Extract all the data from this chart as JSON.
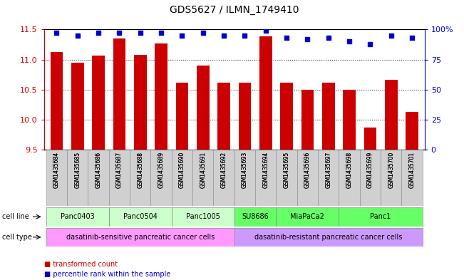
{
  "title": "GDS5627 / ILMN_1749410",
  "samples": [
    "GSM1435684",
    "GSM1435685",
    "GSM1435686",
    "GSM1435687",
    "GSM1435688",
    "GSM1435689",
    "GSM1435690",
    "GSM1435691",
    "GSM1435692",
    "GSM1435693",
    "GSM1435694",
    "GSM1435695",
    "GSM1435696",
    "GSM1435697",
    "GSM1435698",
    "GSM1435699",
    "GSM1435700",
    "GSM1435701"
  ],
  "bar_values": [
    11.13,
    10.95,
    11.07,
    11.35,
    11.08,
    11.27,
    10.62,
    10.9,
    10.62,
    10.62,
    11.38,
    10.62,
    10.5,
    10.62,
    10.5,
    9.87,
    10.66,
    10.13
  ],
  "percentile_values": [
    97,
    95,
    97,
    97,
    97,
    97,
    95,
    97,
    95,
    95,
    99,
    93,
    92,
    93,
    90,
    88,
    95,
    93
  ],
  "bar_color": "#cc0000",
  "percentile_color": "#0000cc",
  "ylim_left": [
    9.5,
    11.5
  ],
  "ylim_right": [
    0,
    100
  ],
  "yticks_left": [
    9.5,
    10.0,
    10.5,
    11.0,
    11.5
  ],
  "yticks_right": [
    0,
    25,
    50,
    75,
    100
  ],
  "ytick_labels_right": [
    "0",
    "25",
    "50",
    "75",
    "100%"
  ],
  "cell_line_groups": [
    {
      "label": "Panc0403",
      "start": 0,
      "end": 2,
      "color": "#ccffcc"
    },
    {
      "label": "Panc0504",
      "start": 3,
      "end": 5,
      "color": "#ccffcc"
    },
    {
      "label": "Panc1005",
      "start": 6,
      "end": 8,
      "color": "#ccffcc"
    },
    {
      "label": "SU8686",
      "start": 9,
      "end": 10,
      "color": "#66ff66"
    },
    {
      "label": "MiaPaCa2",
      "start": 11,
      "end": 13,
      "color": "#66ff66"
    },
    {
      "label": "Panc1",
      "start": 14,
      "end": 17,
      "color": "#66ff66"
    }
  ],
  "cell_type_groups": [
    {
      "label": "dasatinib-sensitive pancreatic cancer cells",
      "start": 0,
      "end": 8,
      "color": "#ff99ff"
    },
    {
      "label": "dasatinib-resistant pancreatic cancer cells",
      "start": 9,
      "end": 17,
      "color": "#cc99ff"
    }
  ],
  "legend_bar_label": "transformed count",
  "legend_dot_label": "percentile rank within the sample",
  "row_label_cell_line": "cell line",
  "row_label_cell_type": "cell type",
  "axis_left_color": "#cc0000",
  "axis_right_color": "#0000cc",
  "xlim": [
    -0.6,
    17.6
  ],
  "bar_width": 0.6
}
